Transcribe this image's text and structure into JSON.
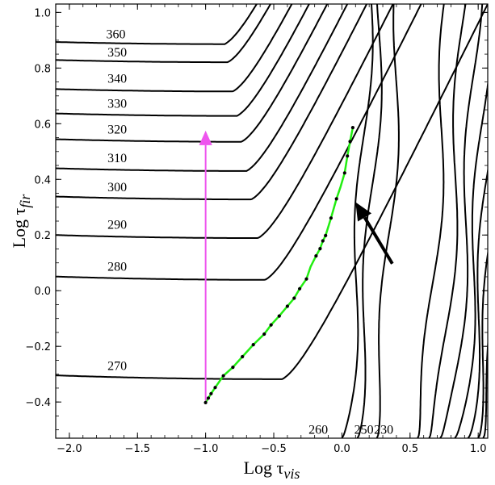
{
  "chart_data": {
    "type": "line",
    "xlabel": {
      "main": "Log τ",
      "sub": "vis"
    },
    "ylabel": {
      "main": "Log τ",
      "sub": "fir"
    },
    "xlim": [
      -2.1,
      1.07
    ],
    "ylim": [
      -0.53,
      1.03
    ],
    "x_ticks": [
      -2.0,
      -1.5,
      -1.0,
      -0.5,
      0.0,
      0.5,
      1.0
    ],
    "x_tick_labels": [
      "−2.0",
      "−1.5",
      "−1.0",
      "−0.5",
      "0.0",
      "0.5",
      "1.0"
    ],
    "y_ticks": [
      -0.4,
      -0.2,
      0.0,
      0.2,
      0.4,
      0.6,
      0.8,
      1.0
    ],
    "y_tick_labels": [
      "−0.4",
      "−0.2",
      "0.0",
      "0.2",
      "0.4",
      "0.6",
      "0.8",
      "1.0"
    ],
    "grid": false,
    "horizontal_contours": [
      {
        "label": "360",
        "y0": 0.886,
        "label_x": -1.73,
        "label_y": 0.907
      },
      {
        "label": "350",
        "y0": 0.821,
        "label_x": -1.72,
        "label_y": 0.842
      },
      {
        "label": "340",
        "y0": 0.716,
        "label_x": -1.72,
        "label_y": 0.748
      },
      {
        "label": "330",
        "y0": 0.628,
        "label_x": -1.72,
        "label_y": 0.657
      },
      {
        "label": "320",
        "y0": 0.535,
        "label_x": -1.72,
        "label_y": 0.565
      },
      {
        "label": "310",
        "y0": 0.43,
        "label_x": -1.72,
        "label_y": 0.462
      },
      {
        "label": "300",
        "y0": 0.328,
        "label_x": -1.72,
        "label_y": 0.358
      },
      {
        "label": "290",
        "y0": 0.189,
        "label_x": -1.72,
        "label_y": 0.222
      },
      {
        "label": "280",
        "y0": 0.039,
        "label_x": -1.72,
        "label_y": 0.072
      },
      {
        "label": "270",
        "y0": -0.318,
        "label_x": -1.72,
        "label_y": -0.285
      }
    ],
    "vertical_contours": [
      {
        "label": "260",
        "x_bottom": 0.0,
        "x_top": 0.2,
        "label_x": -0.245
      },
      {
        "label": "250",
        "x_bottom": 0.08,
        "x_top": 0.28,
        "label_x": 0.09
      },
      {
        "label": "230",
        "x_bottom": 0.22,
        "x_top": 0.42,
        "label_x": 0.235
      },
      {
        "label": "",
        "x_bottom": 0.55,
        "x_top": 0.77
      },
      {
        "label": "",
        "x_bottom": 0.67,
        "x_top": 0.89
      },
      {
        "label": "",
        "x_bottom": 0.76,
        "x_top": 0.99
      },
      {
        "label": "",
        "x_bottom": 0.84,
        "x_top": 1.07
      },
      {
        "label": "",
        "x_bottom": 0.9,
        "x_top": 1.13
      },
      {
        "label": "",
        "x_bottom": 0.96,
        "x_top": 1.19
      },
      {
        "label": "",
        "x_bottom": 1.02,
        "x_top": 1.25
      }
    ],
    "green_track": {
      "color": "#22ee11",
      "points": [
        [
          -1.0,
          -0.402
        ],
        [
          -0.98,
          -0.386
        ],
        [
          -0.96,
          -0.37
        ],
        [
          -0.93,
          -0.348
        ],
        [
          -0.87,
          -0.306
        ],
        [
          -0.8,
          -0.275
        ],
        [
          -0.73,
          -0.237
        ],
        [
          -0.65,
          -0.194
        ],
        [
          -0.57,
          -0.156
        ],
        [
          -0.52,
          -0.123
        ],
        [
          -0.46,
          -0.091
        ],
        [
          -0.4,
          -0.056
        ],
        [
          -0.35,
          -0.027
        ],
        [
          -0.31,
          0.007
        ],
        [
          -0.26,
          0.042
        ],
        [
          -0.23,
          0.086
        ],
        [
          -0.19,
          0.125
        ],
        [
          -0.16,
          0.151
        ],
        [
          -0.14,
          0.179
        ],
        [
          -0.12,
          0.198
        ],
        [
          -0.08,
          0.261
        ],
        [
          -0.04,
          0.33
        ],
        [
          -0.01,
          0.373
        ],
        [
          0.02,
          0.423
        ],
        [
          0.04,
          0.484
        ],
        [
          0.06,
          0.536
        ],
        [
          0.08,
          0.586
        ]
      ],
      "markers": [
        [
          -1.0,
          -0.402
        ],
        [
          -0.98,
          -0.386
        ],
        [
          -0.96,
          -0.37
        ],
        [
          -0.93,
          -0.348
        ],
        [
          -0.87,
          -0.306
        ],
        [
          -0.8,
          -0.275
        ],
        [
          -0.73,
          -0.237
        ],
        [
          -0.65,
          -0.194
        ],
        [
          -0.57,
          -0.156
        ],
        [
          -0.52,
          -0.123
        ],
        [
          -0.46,
          -0.091
        ],
        [
          -0.4,
          -0.056
        ],
        [
          -0.35,
          -0.027
        ],
        [
          -0.31,
          0.007
        ],
        [
          -0.26,
          0.042
        ],
        [
          -0.19,
          0.125
        ],
        [
          -0.16,
          0.151
        ],
        [
          -0.14,
          0.179
        ],
        [
          -0.12,
          0.198
        ],
        [
          -0.08,
          0.261
        ],
        [
          -0.04,
          0.33
        ],
        [
          0.02,
          0.423
        ],
        [
          0.04,
          0.484
        ],
        [
          0.06,
          0.536
        ],
        [
          0.08,
          0.586
        ]
      ]
    },
    "magenta_arrow": {
      "color": "#ee55ee",
      "from": [
        -1.0,
        -0.395
      ],
      "to": [
        -1.0,
        0.575
      ]
    },
    "black_arrow": {
      "color": "#000000",
      "from": [
        0.37,
        0.097
      ],
      "to": [
        0.1,
        0.318
      ]
    }
  }
}
